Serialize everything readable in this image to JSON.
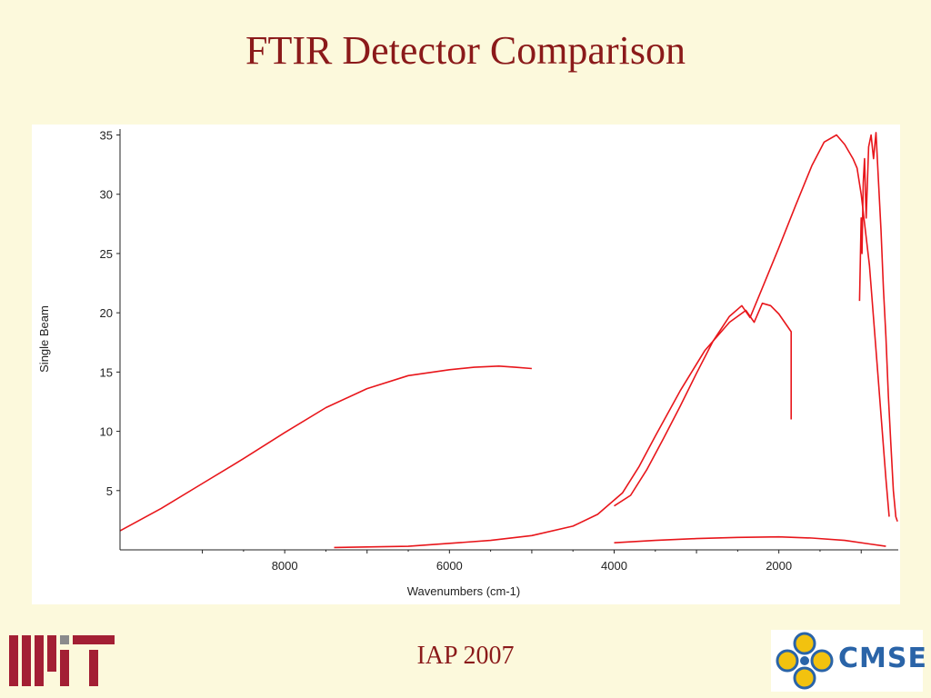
{
  "slide": {
    "title": "FTIR Detector Comparison",
    "footer": "IAP 2007",
    "logos": {
      "left": "MIT",
      "right": "CMSE"
    }
  },
  "colors": {
    "title": "#8B1A1A",
    "background": "#FCF9DC",
    "series": "#E8161B",
    "cmse_blue": "#2A64A8",
    "cmse_gold": "#F2C20F"
  },
  "chart_data": {
    "type": "line",
    "xlabel": "Wavenumbers (cm-1)",
    "ylabel": "Single Beam",
    "xlim": [
      10000,
      550
    ],
    "ylim": [
      0,
      35.5
    ],
    "x_reversed": true,
    "x_ticks": [
      8000,
      6000,
      4000,
      2000
    ],
    "y_ticks": [
      5,
      10,
      15,
      20,
      25,
      30,
      35
    ],
    "grid": false,
    "legend": "none",
    "series": [
      {
        "color": "#E8161B",
        "x": [
          10000,
          9500,
          9000,
          8500,
          8000,
          7500,
          7000,
          6500,
          6000,
          5700,
          5400,
          5200,
          5000
        ],
        "y": [
          1.6,
          3.5,
          5.6,
          7.7,
          9.9,
          12.0,
          13.6,
          14.7,
          15.2,
          15.4,
          15.5,
          15.4,
          15.3
        ]
      },
      {
        "color": "#E8161B",
        "x": [
          7400,
          6500,
          5500,
          5000,
          4500,
          4200,
          3900,
          3700,
          3500,
          3200,
          2900,
          2600,
          2400,
          2300,
          2200,
          2100,
          2000,
          1900,
          1850,
          1850
        ],
        "y": [
          0.2,
          0.3,
          0.8,
          1.2,
          2.0,
          3.0,
          4.8,
          7.0,
          9.6,
          13.4,
          16.8,
          19.2,
          20.2,
          19.2,
          20.8,
          20.6,
          19.9,
          18.9,
          18.4,
          11.0
        ]
      },
      {
        "color": "#E8161B",
        "x": [
          4000,
          3800,
          3600,
          3400,
          3200,
          3000,
          2800,
          2600,
          2450,
          2350,
          2200,
          2000,
          1800,
          1600,
          1450,
          1300,
          1200,
          1100,
          1050,
          1000,
          900,
          800,
          700,
          660
        ],
        "y": [
          3.7,
          4.6,
          6.8,
          9.4,
          12.1,
          14.9,
          17.6,
          19.7,
          20.6,
          19.6,
          22.1,
          25.5,
          29.0,
          32.4,
          34.4,
          35.0,
          34.2,
          33.0,
          32.2,
          30.0,
          24.0,
          15.0,
          6.0,
          2.8
        ]
      },
      {
        "color": "#E8161B",
        "x": [
          4000,
          3500,
          3000,
          2500,
          2000,
          1600,
          1200,
          900,
          700
        ],
        "y": [
          0.6,
          0.8,
          0.95,
          1.05,
          1.1,
          1.0,
          0.8,
          0.5,
          0.3
        ]
      },
      {
        "color": "#E8161B",
        "x": [
          1020,
          1000,
          990,
          975,
          960,
          940,
          910,
          880,
          850,
          820,
          790,
          760,
          730,
          700,
          670,
          640,
          610,
          580,
          560
        ],
        "y": [
          21.0,
          28.0,
          25.0,
          31.0,
          33.0,
          28.0,
          34.0,
          35.0,
          33.0,
          35.2,
          31.0,
          27.0,
          22.0,
          18.0,
          13.0,
          9.0,
          5.0,
          2.8,
          2.4
        ]
      }
    ]
  }
}
